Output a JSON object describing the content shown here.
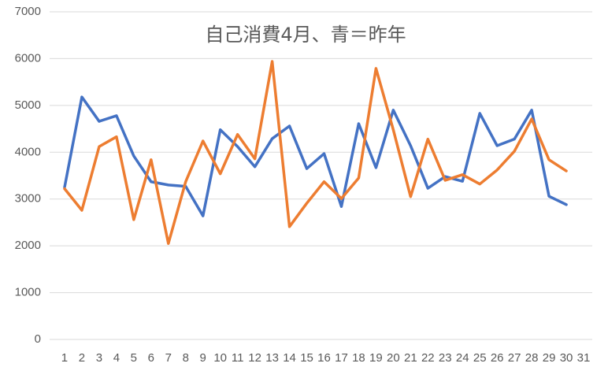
{
  "chart_data": {
    "type": "line",
    "title": "自己消費4月、青＝昨年",
    "categories": [
      "1",
      "2",
      "3",
      "4",
      "5",
      "6",
      "7",
      "8",
      "9",
      "10",
      "11",
      "12",
      "13",
      "14",
      "15",
      "16",
      "17",
      "18",
      "19",
      "20",
      "21",
      "22",
      "23",
      "24",
      "25",
      "26",
      "27",
      "28",
      "29",
      "30",
      "31"
    ],
    "series": [
      {
        "color": "#4472c4",
        "values": [
          3250,
          5180,
          4660,
          4780,
          3920,
          3370,
          3300,
          3270,
          2640,
          4480,
          4120,
          3690,
          4290,
          4560,
          3650,
          3970,
          2840,
          4610,
          3670,
          4900,
          4140,
          3230,
          3480,
          3380,
          4830,
          4140,
          4280,
          4900,
          3060,
          2880,
          null
        ]
      },
      {
        "color": "#ed7d31",
        "values": [
          3220,
          2760,
          4120,
          4330,
          2560,
          3840,
          2050,
          3370,
          4240,
          3540,
          4380,
          3860,
          5940,
          2410,
          2910,
          3370,
          3010,
          3450,
          5790,
          4480,
          3050,
          4280,
          3400,
          3520,
          3320,
          3620,
          4020,
          4710,
          3840,
          3600,
          null
        ]
      }
    ],
    "ylim": [
      0,
      7000
    ],
    "yticks": [
      0,
      1000,
      2000,
      3000,
      4000,
      5000,
      6000,
      7000
    ],
    "grid": true
  }
}
